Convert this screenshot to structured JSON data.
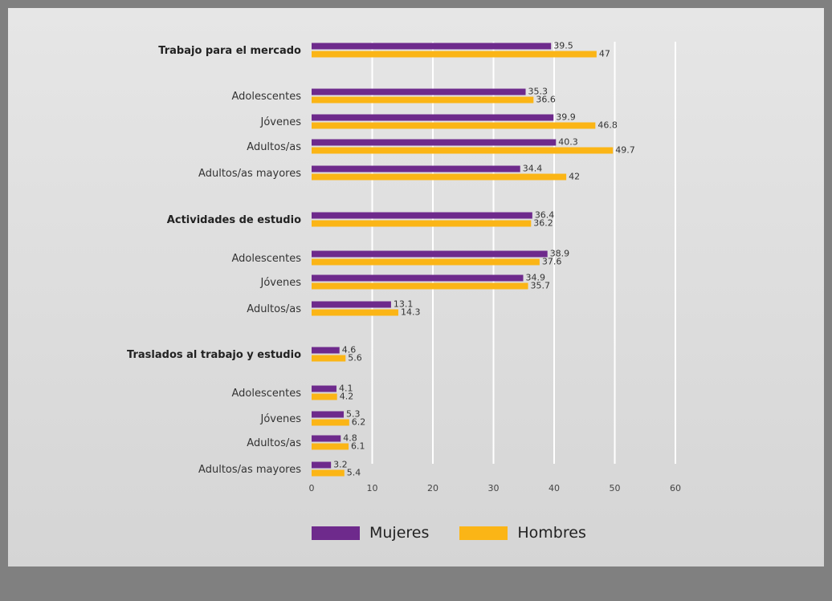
{
  "chart_data": {
    "type": "bar",
    "orientation": "horizontal",
    "xlim": [
      0,
      60
    ],
    "ticks": [
      0,
      10,
      20,
      30,
      40,
      50,
      60
    ],
    "grid": true,
    "legend_position": "bottom-center",
    "series": [
      {
        "name": "Mujeres",
        "color": "#6e2a8c"
      },
      {
        "name": "Hombres",
        "color": "#fbb516"
      }
    ],
    "categories": [
      {
        "label": "Trabajo para el mercado",
        "header": true,
        "values": [
          39.5,
          47
        ],
        "labels": [
          "39.5",
          "47"
        ]
      },
      {
        "label": "Adolescentes",
        "header": false,
        "values": [
          35.3,
          36.6
        ],
        "labels": [
          "35.3",
          "36.6"
        ]
      },
      {
        "label": "Jóvenes",
        "header": false,
        "values": [
          39.9,
          46.8
        ],
        "labels": [
          "39.9",
          "46.8"
        ]
      },
      {
        "label": "Adultos/as",
        "header": false,
        "values": [
          40.3,
          49.7
        ],
        "labels": [
          "40.3",
          "49.7"
        ]
      },
      {
        "label": "Adultos/as mayores",
        "header": false,
        "values": [
          34.4,
          42
        ],
        "labels": [
          "34.4",
          "42"
        ]
      },
      {
        "label": "Actividades de estudio",
        "header": true,
        "values": [
          36.4,
          36.2
        ],
        "labels": [
          "36.4",
          "36.2"
        ]
      },
      {
        "label": "Adolescentes",
        "header": false,
        "values": [
          38.9,
          37.6
        ],
        "labels": [
          "38.9",
          "37.6"
        ]
      },
      {
        "label": "Jóvenes",
        "header": false,
        "values": [
          34.9,
          35.7
        ],
        "labels": [
          "34.9",
          "35.7"
        ]
      },
      {
        "label": "Adultos/as",
        "header": false,
        "values": [
          13.1,
          14.3
        ],
        "labels": [
          "13.1",
          "14.3"
        ]
      },
      {
        "label": "Traslados al trabajo y estudio",
        "header": true,
        "values": [
          4.6,
          5.6
        ],
        "labels": [
          "4.6",
          "5.6"
        ]
      },
      {
        "label": "Adolescentes",
        "header": false,
        "values": [
          4.1,
          4.2
        ],
        "labels": [
          "4.1",
          "4.2"
        ]
      },
      {
        "label": "Jóvenes",
        "header": false,
        "values": [
          5.3,
          6.2
        ],
        "labels": [
          "5.3",
          "6.2"
        ]
      },
      {
        "label": "Adultos/as",
        "header": false,
        "values": [
          4.8,
          6.1
        ],
        "labels": [
          "4.8",
          "6.1"
        ]
      },
      {
        "label": "Adultos/as mayores",
        "header": false,
        "values": [
          3.2,
          5.4
        ],
        "labels": [
          "3.2",
          "5.4"
        ]
      }
    ]
  },
  "legend": {
    "mujeres": "Mujeres",
    "hombres": "Hombres"
  }
}
